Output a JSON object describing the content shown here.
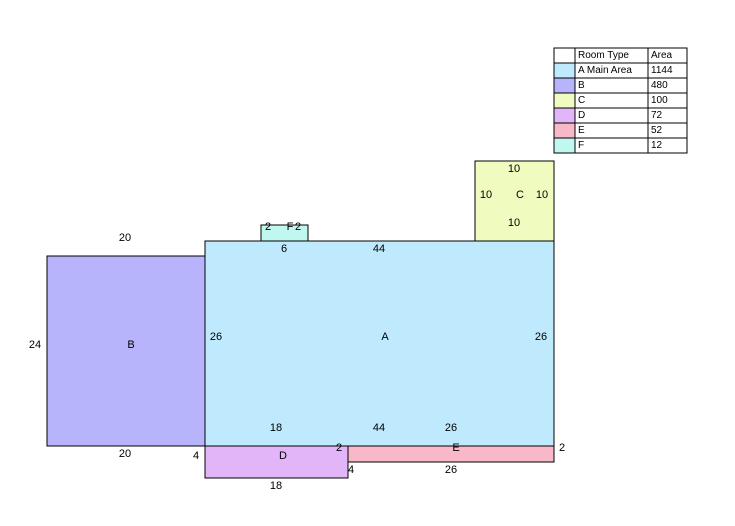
{
  "rooms": [
    {
      "label": "A",
      "color": "#bfeafd",
      "dimensions": [
        44,
        26,
        26,
        18,
        44,
        26,
        6
      ]
    },
    {
      "label": "B",
      "color": "#b8b4fb",
      "dimensions": [
        20,
        24,
        20
      ]
    },
    {
      "label": "C",
      "color": "#f0fbc0",
      "dimensions": [
        10,
        10,
        10,
        10
      ]
    },
    {
      "label": "D",
      "color": "#e2b4f8",
      "dimensions": [
        4,
        18,
        2
      ]
    },
    {
      "label": "E",
      "color": "#f8b8c8",
      "dimensions": [
        2,
        4,
        26
      ]
    },
    {
      "label": "F",
      "color": "#c0f8f0",
      "dimensions": [
        2,
        2
      ]
    }
  ],
  "legend": {
    "headers": [
      "Room Type",
      "Area"
    ],
    "rows": [
      [
        "A Main Area",
        1144
      ],
      [
        "B",
        480
      ],
      [
        "C",
        100
      ],
      [
        "D",
        72
      ],
      [
        "E",
        52
      ],
      [
        "F",
        12
      ]
    ]
  }
}
